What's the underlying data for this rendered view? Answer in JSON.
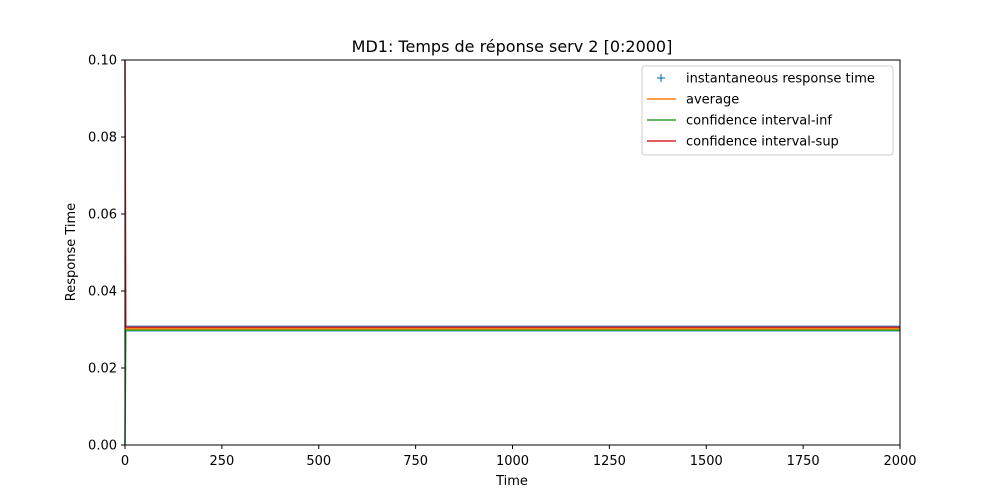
{
  "chart_data": {
    "type": "line",
    "title": "MD1: Temps de réponse serv 2 [0:2000]",
    "xlabel": "Time",
    "ylabel": "Response Time",
    "xlim": [
      0,
      2000
    ],
    "ylim": [
      0,
      0.1
    ],
    "xticks": [
      "0",
      "250",
      "500",
      "750",
      "1000",
      "1250",
      "1500",
      "1750",
      "2000"
    ],
    "yticks": [
      "0.00",
      "0.02",
      "0.04",
      "0.06",
      "0.08",
      "0.10"
    ],
    "grid": false,
    "legend_position": "top-right",
    "series": [
      {
        "name": "instantaneous response time",
        "style": "marker",
        "color": "#1f77b4",
        "x": [
          0,
          2000
        ],
        "band": [
          0.0295,
          0.031
        ]
      },
      {
        "name": "average",
        "style": "line",
        "color": "#ff7f0e",
        "x": [
          0,
          2,
          2000
        ],
        "y": [
          0.03,
          0.0302,
          0.0302
        ]
      },
      {
        "name": "confidence interval-inf",
        "style": "line",
        "color": "#2ca02c",
        "x": [
          0,
          2,
          2000
        ],
        "y": [
          0.0,
          0.0298,
          0.0298
        ]
      },
      {
        "name": "confidence interval-sup",
        "style": "line",
        "color": "#d62728",
        "x": [
          0,
          2,
          2000
        ],
        "y": [
          0.1,
          0.0306,
          0.0306
        ]
      }
    ]
  }
}
